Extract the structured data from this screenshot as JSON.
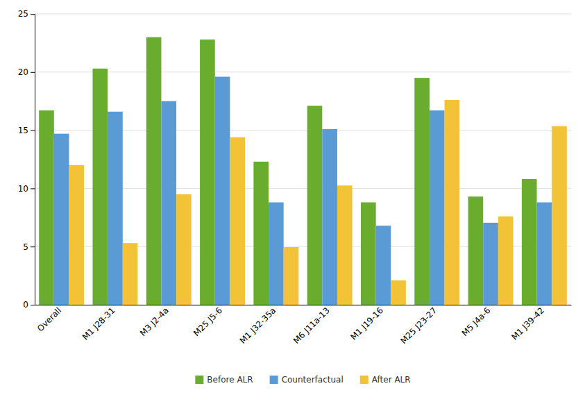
{
  "chart_data": {
    "type": "bar",
    "categories": [
      "Overall",
      "M1 J28-31",
      "M3 J2-4a",
      "M25 J5-6",
      "M1 J32-35a",
      "M6 J11a-13",
      "M1 J19-16",
      "M25 J23-27",
      "M5 J4a-6",
      "M1 J39-42"
    ],
    "series": [
      {
        "name": "Before ALR",
        "color": "#6AAD2E",
        "values": [
          16.7,
          20.3,
          23.0,
          22.8,
          12.3,
          17.1,
          8.8,
          19.5,
          9.3,
          10.8
        ]
      },
      {
        "name": "Counterfactual",
        "color": "#5B9BD5",
        "values": [
          14.7,
          16.6,
          17.5,
          19.6,
          8.8,
          15.1,
          6.8,
          16.7,
          7.05,
          8.8
        ]
      },
      {
        "name": "After ALR",
        "color": "#F2C336",
        "values": [
          12.0,
          5.3,
          9.5,
          14.4,
          4.95,
          10.25,
          2.1,
          17.6,
          7.6,
          15.35
        ]
      }
    ],
    "ylim": [
      0,
      25
    ],
    "yticks": [
      0,
      5,
      10,
      15,
      20,
      25
    ],
    "grid": true,
    "legend": "bottom"
  }
}
